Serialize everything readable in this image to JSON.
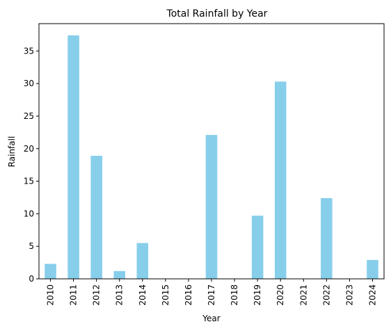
{
  "chart_data": {
    "type": "bar",
    "title": "Total Rainfall by Year",
    "xlabel": "Year",
    "ylabel": "Rainfall",
    "categories": [
      "2010",
      "2011",
      "2012",
      "2013",
      "2014",
      "2015",
      "2016",
      "2017",
      "2018",
      "2019",
      "2020",
      "2021",
      "2022",
      "2023",
      "2024"
    ],
    "values": [
      2.3,
      37.4,
      18.9,
      1.2,
      5.5,
      0,
      0,
      22.1,
      0,
      9.7,
      30.3,
      0,
      12.4,
      0,
      2.9
    ],
    "ylim": [
      0,
      39.2
    ],
    "yticks": [
      0,
      5,
      10,
      15,
      20,
      25,
      30,
      35
    ],
    "bar_color": "#87ceeb",
    "grid": false,
    "legend": "none"
  }
}
